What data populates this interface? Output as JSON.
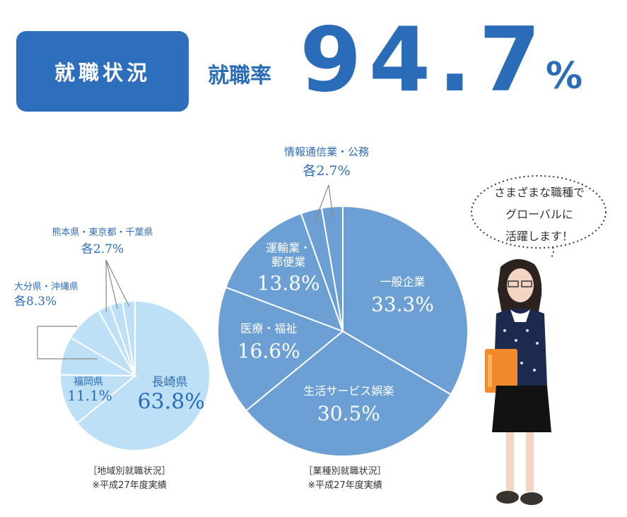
{
  "header": {
    "badge_label": "就職状況",
    "rate_label": "就職率",
    "rate_value": "94.7",
    "rate_unit": "%"
  },
  "speech_bubble": {
    "lines": [
      "さまざまな職種で",
      "グローバルに",
      "活躍します！"
    ]
  },
  "captions": {
    "region_title": "［地域別就職状況］",
    "region_note": "※平成27年度実績",
    "industry_title": "［業種別就職状況］",
    "industry_note": "※平成27年度実績"
  },
  "colors": {
    "accent": "#2d6fbd",
    "region_fill": "#bde0f6",
    "industry_fill": "#6c9fd3",
    "label_dark": "#2b6cb8"
  },
  "chart_data": [
    {
      "type": "pie",
      "slices": [
        {
          "label": "長崎県",
          "value": 63.8,
          "display": "63.8%"
        },
        {
          "label": "福岡県",
          "value": 11.1,
          "display": "11.1%"
        },
        {
          "label": "大分県",
          "value": 8.3
        },
        {
          "label": "沖縄県",
          "value": 8.3
        },
        {
          "label": "熊本県",
          "value": 2.7
        },
        {
          "label": "東京都",
          "value": 2.7
        },
        {
          "label": "千葉県",
          "value": 2.7
        }
      ],
      "callouts": [
        {
          "text": "大分県・沖縄県",
          "value_text": "各8.3%"
        },
        {
          "text": "熊本県・東京都・千葉県",
          "value_text": "各2.7%"
        }
      ]
    },
    {
      "type": "pie",
      "slices": [
        {
          "label": "一般企業",
          "value": 33.3,
          "display": "33.3%"
        },
        {
          "label": "生活サービス娯楽",
          "value": 30.5,
          "display": "30.5%"
        },
        {
          "label": "医療・福祉",
          "value": 16.6,
          "display": "16.6%"
        },
        {
          "label": "運輸業・郵便業",
          "value": 13.8,
          "display": "13.8%"
        },
        {
          "label": "情報通信業",
          "value": 2.7
        },
        {
          "label": "公務",
          "value": 2.7
        }
      ],
      "callouts": [
        {
          "text": "情報通信業・公務",
          "value_text": "各2.7%"
        }
      ]
    }
  ]
}
